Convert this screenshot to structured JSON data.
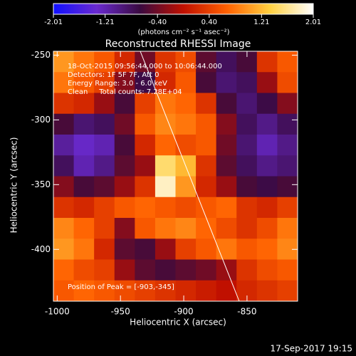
{
  "chart_data": {
    "type": "heatmap",
    "title": "Reconstructed RHESSI Image",
    "xlabel": "Heliocentric X (arcsec)",
    "ylabel": "Heliocentric Y (arcsec)",
    "annotations": [
      "18-Oct-2015 09:56:44.000 to 10:06:44.000",
      "Detectors: 1F 5F 7F, Att 0",
      "Energy Range: 3.0 - 6.0 keV",
      "Clean     Total counts: 7.28E+04"
    ],
    "peak_label": "Position of Peak = [-903,-345]",
    "footer": "17-Sep-2017 19:15",
    "colorbar_label": "(photons cm⁻² s⁻¹ asec⁻²)",
    "colorbar_lim": [
      -2.01,
      2.01
    ],
    "colorbar_ticks": [
      -2.01,
      -1.21,
      {
        "value": -0.4,
        "label": "-0.40"
      },
      {
        "value": 0.4,
        "label": "0.40"
      },
      1.21,
      2.01
    ],
    "colormap": [
      "#1010ff",
      "#6a2ad0",
      "#3a0a40",
      "#c01000",
      "#ff6000",
      "#ffd040",
      "#ffffff"
    ],
    "xlim": [
      -1003,
      -810
    ],
    "ylim": [
      -440,
      -247
    ],
    "xticks": [
      -1000,
      -950,
      -900,
      -850
    ],
    "yticks": [
      -400,
      -350,
      -300,
      -250
    ],
    "z": [
      [
        1.0,
        0.8,
        0.6,
        0.2,
        -0.4,
        0.3,
        0.5,
        -0.5,
        -0.8,
        -0.6,
        0.3,
        0.6
      ],
      [
        0.8,
        0.6,
        0.4,
        -0.3,
        -0.7,
        0.2,
        0.6,
        -0.6,
        -0.9,
        -0.8,
        -0.2,
        0.5
      ],
      [
        0.3,
        0.2,
        -0.2,
        -0.6,
        0.4,
        0.8,
        0.7,
        0.3,
        -0.6,
        -0.9,
        -0.7,
        -0.3
      ],
      [
        -0.6,
        -0.9,
        -0.8,
        -0.4,
        0.6,
        0.9,
        0.8,
        0.6,
        -0.3,
        -0.8,
        -1.0,
        -0.8
      ],
      [
        -1.1,
        -1.3,
        -1.2,
        -0.6,
        0.2,
        0.7,
        0.5,
        0.6,
        -0.4,
        -0.9,
        -1.2,
        -1.0
      ],
      [
        -0.8,
        -1.2,
        -1.0,
        -0.5,
        -0.2,
        1.5,
        1.2,
        0.3,
        -0.5,
        -0.8,
        -1.0,
        -0.9
      ],
      [
        -0.3,
        -0.6,
        -0.5,
        -0.2,
        0.3,
        1.8,
        1.0,
        0.2,
        -0.2,
        -0.6,
        -0.7,
        -0.6
      ],
      [
        0.3,
        0.2,
        0.4,
        0.6,
        0.7,
        0.6,
        0.5,
        0.6,
        0.7,
        0.3,
        0.2,
        0.4
      ],
      [
        0.9,
        0.7,
        0.4,
        -0.3,
        0.6,
        0.8,
        0.9,
        0.7,
        0.5,
        0.3,
        0.5,
        0.8
      ],
      [
        1.0,
        0.8,
        0.2,
        -0.5,
        -0.6,
        -0.2,
        0.4,
        0.6,
        0.8,
        0.6,
        0.7,
        0.9
      ],
      [
        0.7,
        0.5,
        0.4,
        -0.2,
        -0.5,
        -0.6,
        -0.5,
        -0.4,
        -0.2,
        0.3,
        0.5,
        0.6
      ],
      [
        0.6,
        0.7,
        0.6,
        0.5,
        0.4,
        0.3,
        0.2,
        0.1,
        0.0,
        0.2,
        0.3,
        0.4
      ]
    ]
  }
}
